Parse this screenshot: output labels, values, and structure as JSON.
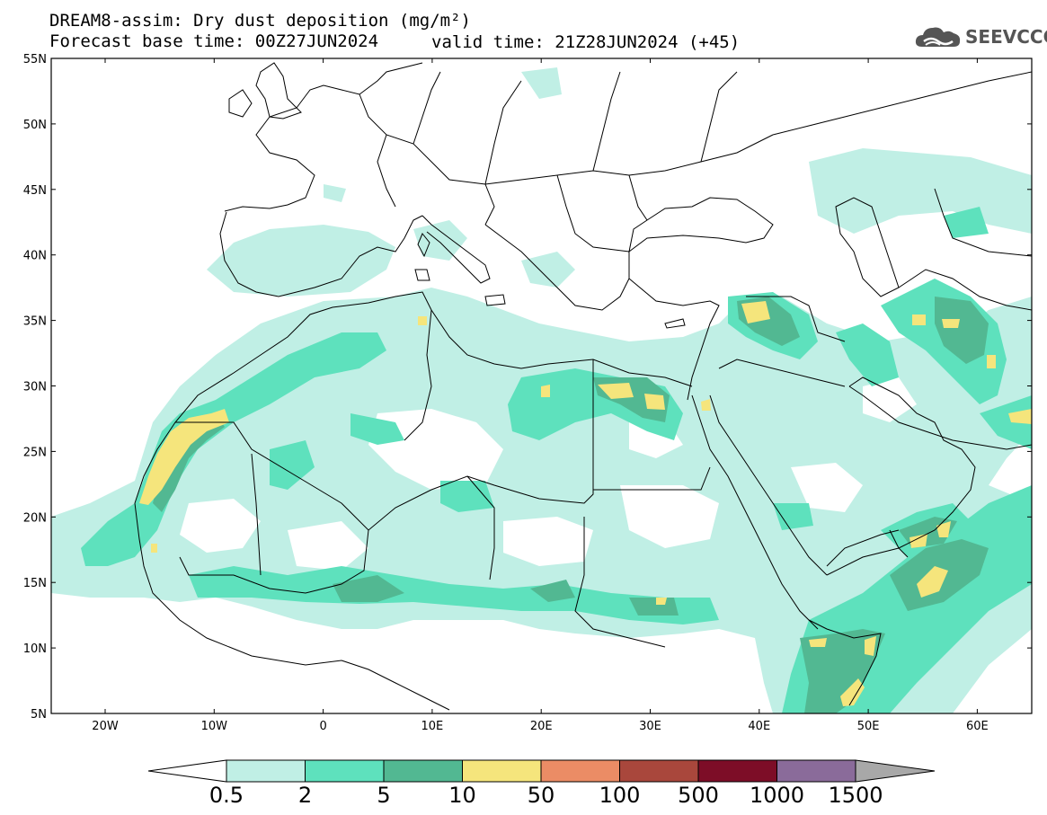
{
  "title": {
    "line1": "DREAM8-assim: Dry dust deposition (mg/m²)",
    "line2_left": "Forecast base time: 00Z27JUN2024",
    "line2_right": "valid time: 21Z28JUN2024 (+45)"
  },
  "logo": {
    "icon": "cloud-icon",
    "text": "SEEVCCC"
  },
  "map": {
    "lat_labels": [
      "55N",
      "50N",
      "45N",
      "40N",
      "35N",
      "30N",
      "25N",
      "20N",
      "15N",
      "10N",
      "5N"
    ],
    "lon_labels": [
      "20W",
      "10W",
      "0",
      "10E",
      "20E",
      "30E",
      "40E",
      "50E",
      "60E"
    ]
  },
  "colorbar": {
    "labels": [
      "0.5",
      "2",
      "5",
      "10",
      "50",
      "100",
      "500",
      "1000",
      "1500"
    ],
    "colors": [
      "#c0efe5",
      "#5ee1bd",
      "#52b892",
      "#f5e57c",
      "#eb8c65",
      "#a9473c",
      "#7d0d27",
      "#8a6b9a"
    ],
    "under_color": "#ffffff",
    "over_color": "#a8a8a8"
  },
  "colors": {
    "level1": "#c0efe5",
    "level2": "#5ee1bd",
    "level3": "#52b892",
    "level4": "#f5e57c",
    "border": "#000000"
  }
}
